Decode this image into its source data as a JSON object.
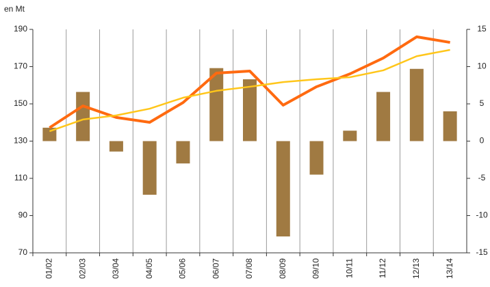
{
  "chart_data": {
    "type": "bar_line",
    "y_label": "en Mt",
    "categories": [
      "01/02",
      "02/03",
      "03/04",
      "04/05",
      "05/06",
      "06/07",
      "07/08",
      "08/09",
      "09/10",
      "10/11",
      "11/12",
      "12/13",
      "13/14"
    ],
    "ylim": [
      70,
      190
    ],
    "yticks": [
      70,
      90,
      110,
      130,
      150,
      170,
      190
    ],
    "y2lim": [
      -15,
      15
    ],
    "y2ticks": [
      -15,
      -10,
      -5,
      0,
      5,
      10,
      15
    ],
    "grid": true,
    "series": [
      {
        "type": "bar",
        "axis": "y2",
        "color": "#a07a42",
        "values": [
          1.8,
          6.6,
          -1.4,
          -7.2,
          -3.0,
          9.8,
          8.3,
          -12.8,
          -4.5,
          1.4,
          6.6,
          9.7,
          4.0
        ]
      },
      {
        "type": "line",
        "axis": "y",
        "color": "#ff6a10",
        "values": [
          137.2,
          148.9,
          142.7,
          140.1,
          150.7,
          166.5,
          167.6,
          149.3,
          159.2,
          166.1,
          174.6,
          186,
          183
        ]
      },
      {
        "type": "line",
        "axis": "y",
        "color": "#ffc61a",
        "values": [
          135.3,
          141.6,
          143.8,
          147.4,
          153.3,
          157,
          159.2,
          161.7,
          163.2,
          164.3,
          168,
          175.6,
          179
        ]
      }
    ]
  }
}
